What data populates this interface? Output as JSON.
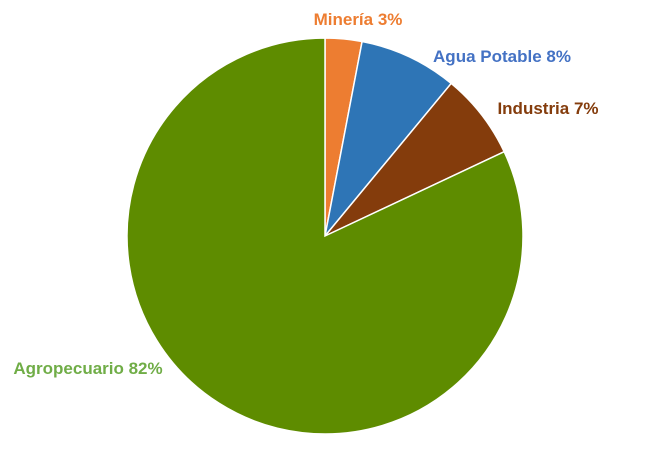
{
  "chart_data": {
    "type": "pie",
    "title": "",
    "legend": "none",
    "start_angle_deg": 0,
    "direction": "clockwise",
    "slices": [
      {
        "label": "Minería 3%",
        "category": "Minería",
        "value": 3,
        "color": "#ED7D31"
      },
      {
        "label": "Agua Potable 8%",
        "category": "Agua Potable",
        "value": 8,
        "color": "#2E75B6"
      },
      {
        "label": "Industria 7%",
        "category": "Industria",
        "value": 7,
        "color": "#843C0C"
      },
      {
        "label": "Agropecuario 82%",
        "category": "Agropecuario",
        "value": 82,
        "color": "#5E8C00"
      }
    ],
    "label_colors": [
      "#ED7D31",
      "#4472C4",
      "#843C0C",
      "#70AD47"
    ]
  }
}
